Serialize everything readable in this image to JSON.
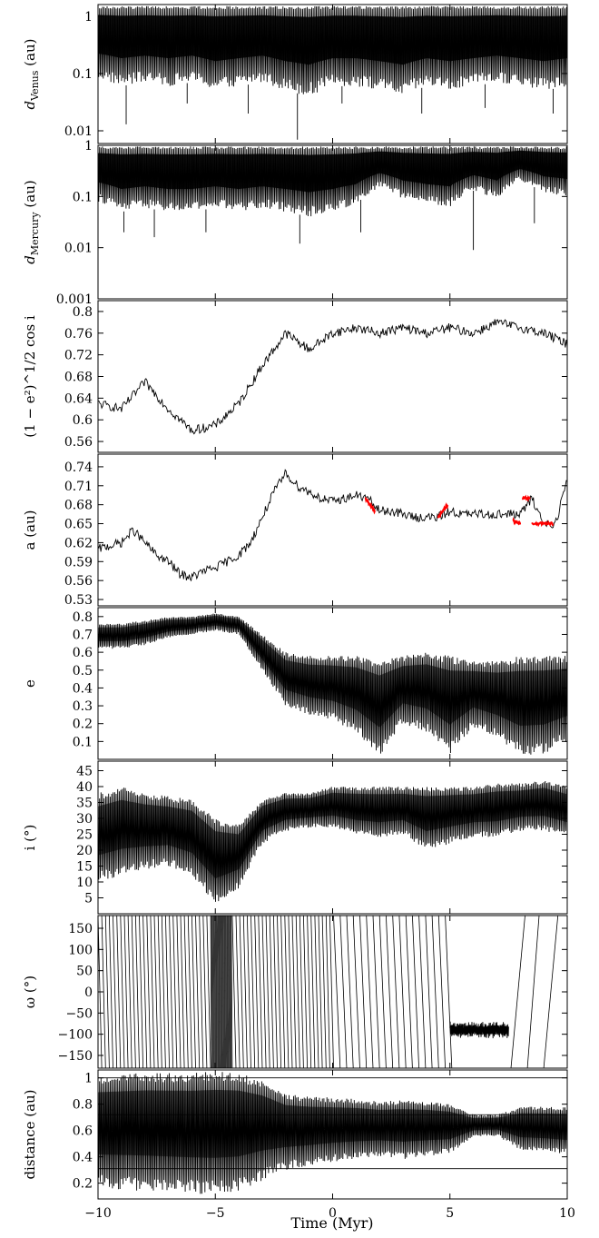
{
  "figure": {
    "xlabel": "Time (Myr)",
    "x_tick_labels": [
      "−10",
      "−5",
      "0",
      "5",
      "10"
    ]
  },
  "chart_data": [
    {
      "type": "line",
      "id": "dvenus",
      "ylabel": "d_Venus (au)",
      "ylabel_main": "d",
      "ylabel_sub": "Venus",
      "ylabel_tail": " (au)",
      "yscale": "log",
      "xlim": [
        -10,
        10
      ],
      "ylim": [
        0.006,
        1.6
      ],
      "y_ticks": [
        0.01,
        0.1,
        1
      ],
      "y_tick_labels": [
        "0.01",
        "0.1",
        "1"
      ],
      "series": [
        {
          "x": [
            -10,
            -9,
            -8,
            -7,
            -6,
            -5,
            -4,
            -3,
            -2,
            -1,
            0,
            1,
            2,
            3,
            4,
            5,
            6,
            7,
            8,
            9,
            10
          ],
          "y_max": [
            1.5,
            1.5,
            1.5,
            1.5,
            1.5,
            1.5,
            1.5,
            1.5,
            1.5,
            1.5,
            1.5,
            1.5,
            1.5,
            1.5,
            1.5,
            1.5,
            1.5,
            1.5,
            1.5,
            1.5,
            1.5
          ],
          "y_min": [
            0.08,
            0.06,
            0.07,
            0.06,
            0.07,
            0.05,
            0.06,
            0.07,
            0.05,
            0.04,
            0.06,
            0.06,
            0.05,
            0.04,
            0.06,
            0.05,
            0.06,
            0.07,
            0.06,
            0.05,
            0.06
          ],
          "spikes": [
            [
              -8.8,
              0.013
            ],
            [
              -6.2,
              0.03
            ],
            [
              -3.6,
              0.02
            ],
            [
              -1.5,
              0.007
            ],
            [
              0.4,
              0.03
            ],
            [
              3.8,
              0.02
            ],
            [
              6.5,
              0.025
            ],
            [
              9.4,
              0.02
            ]
          ]
        }
      ]
    },
    {
      "type": "line",
      "id": "dmercury",
      "ylabel": "d_Mercury (au)",
      "ylabel_main": "d",
      "ylabel_sub": "Mercury",
      "ylabel_tail": " (au)",
      "yscale": "log",
      "xlim": [
        -10,
        10
      ],
      "ylim": [
        0.001,
        1
      ],
      "y_ticks": [
        0.001,
        0.01,
        0.1,
        1
      ],
      "y_tick_labels": [
        "0.001",
        "0.01",
        "0.1",
        "1"
      ],
      "series": [
        {
          "x": [
            -10,
            -9,
            -8,
            -7,
            -6,
            -5,
            -4,
            -3,
            -2,
            -1,
            0,
            1,
            2,
            3,
            4,
            5,
            6,
            7,
            8,
            9,
            10
          ],
          "y_max": [
            0.95,
            0.95,
            0.95,
            0.95,
            0.95,
            0.95,
            0.95,
            0.95,
            0.95,
            0.95,
            0.95,
            0.95,
            0.95,
            0.95,
            0.95,
            0.95,
            0.95,
            0.95,
            0.95,
            0.95,
            0.95
          ],
          "y_min": [
            0.08,
            0.05,
            0.06,
            0.05,
            0.05,
            0.06,
            0.05,
            0.06,
            0.05,
            0.04,
            0.05,
            0.07,
            0.15,
            0.09,
            0.07,
            0.06,
            0.13,
            0.09,
            0.2,
            0.12,
            0.1
          ],
          "spikes": [
            [
              -8.9,
              0.02
            ],
            [
              -7.6,
              0.016
            ],
            [
              -5.4,
              0.02
            ],
            [
              -1.4,
              0.012
            ],
            [
              1.2,
              0.02
            ],
            [
              6.0,
              0.009
            ],
            [
              8.6,
              0.03
            ]
          ]
        }
      ]
    },
    {
      "type": "line",
      "id": "tisserand",
      "ylabel": "(1 − e²)^1/2 cos i",
      "yscale": "linear",
      "xlim": [
        -10,
        10
      ],
      "ylim": [
        0.54,
        0.82
      ],
      "y_ticks": [
        0.56,
        0.6,
        0.64,
        0.68,
        0.72,
        0.76,
        0.8
      ],
      "y_tick_labels": [
        "0.56",
        "0.6",
        "0.64",
        "0.68",
        "0.72",
        "0.76",
        "0.8"
      ],
      "series": [
        {
          "x": [
            -10,
            -9,
            -8,
            -7,
            -6,
            -5,
            -4,
            -3,
            -2,
            -1,
            0,
            1,
            2,
            3,
            4,
            5,
            6,
            7,
            8,
            9,
            10
          ],
          "y": [
            0.63,
            0.62,
            0.67,
            0.62,
            0.58,
            0.59,
            0.63,
            0.7,
            0.76,
            0.73,
            0.76,
            0.77,
            0.76,
            0.77,
            0.76,
            0.77,
            0.76,
            0.78,
            0.77,
            0.76,
            0.74
          ]
        }
      ]
    },
    {
      "type": "line",
      "id": "semimajor",
      "ylabel": "a (au)",
      "yscale": "linear",
      "xlim": [
        -10,
        10
      ],
      "ylim": [
        0.52,
        0.76
      ],
      "y_ticks": [
        0.53,
        0.56,
        0.59,
        0.62,
        0.65,
        0.68,
        0.71,
        0.74
      ],
      "y_tick_labels": [
        "0.53",
        "0.56",
        "0.59",
        "0.62",
        "0.65",
        "0.68",
        "0.71",
        "0.74"
      ],
      "series": [
        {
          "color": "#000000",
          "x": [
            -10,
            -9.5,
            -9,
            -8.5,
            -8,
            -7.5,
            -7,
            -6.5,
            -6,
            -5.5,
            -5,
            -4.5,
            -4,
            -3.5,
            -3,
            -2.5,
            -2,
            -1.5,
            -1,
            -0.5,
            0,
            0.5,
            1,
            1.5,
            2,
            2.5,
            3,
            3.5,
            4,
            4.5,
            5,
            5.5,
            6,
            6.5,
            7,
            7.5,
            8,
            8.5,
            9,
            9.5,
            10
          ],
          "y": [
            0.61,
            0.615,
            0.62,
            0.64,
            0.62,
            0.6,
            0.59,
            0.57,
            0.565,
            0.575,
            0.58,
            0.59,
            0.6,
            0.62,
            0.66,
            0.7,
            0.73,
            0.71,
            0.7,
            0.69,
            0.685,
            0.69,
            0.695,
            0.69,
            0.67,
            0.67,
            0.665,
            0.66,
            0.66,
            0.66,
            0.67,
            0.665,
            0.665,
            0.665,
            0.665,
            0.665,
            0.665,
            0.69,
            0.65,
            0.65,
            0.72
          ]
        },
        {
          "color": "#ff0000",
          "segments": [
            [
              [
                1.4,
                0.69
              ],
              [
                1.8,
                0.67
              ]
            ],
            [
              [
                4.5,
                0.66
              ],
              [
                4.9,
                0.68
              ]
            ],
            [
              [
                7.7,
                0.655
              ],
              [
                8.0,
                0.65
              ]
            ],
            [
              [
                8.1,
                0.69
              ],
              [
                8.4,
                0.69
              ]
            ],
            [
              [
                8.5,
                0.65
              ],
              [
                9.4,
                0.65
              ]
            ]
          ]
        }
      ]
    },
    {
      "type": "line",
      "id": "eccentricity",
      "ylabel": "e",
      "yscale": "linear",
      "xlim": [
        -10,
        10
      ],
      "ylim": [
        0,
        0.85
      ],
      "y_ticks": [
        0.1,
        0.2,
        0.3,
        0.4,
        0.5,
        0.6,
        0.7,
        0.8
      ],
      "y_tick_labels": [
        "0.1",
        "0.2",
        "0.3",
        "0.4",
        "0.5",
        "0.6",
        "0.7",
        "0.8"
      ],
      "series": [
        {
          "x": [
            -10,
            -9,
            -8,
            -7,
            -6,
            -5,
            -4,
            -3,
            -2,
            -1,
            0,
            1,
            2,
            3,
            4,
            5,
            6,
            7,
            8,
            9,
            10
          ],
          "y_max": [
            0.76,
            0.76,
            0.78,
            0.8,
            0.8,
            0.82,
            0.8,
            0.7,
            0.6,
            0.58,
            0.58,
            0.58,
            0.55,
            0.58,
            0.6,
            0.58,
            0.55,
            0.55,
            0.58,
            0.58,
            0.58
          ],
          "y_min": [
            0.62,
            0.62,
            0.64,
            0.68,
            0.7,
            0.72,
            0.7,
            0.5,
            0.3,
            0.25,
            0.22,
            0.15,
            0.02,
            0.2,
            0.15,
            0.03,
            0.18,
            0.12,
            0.02,
            0.03,
            0.1
          ]
        }
      ]
    },
    {
      "type": "line",
      "id": "inclination",
      "ylabel": "i (°)",
      "yscale": "linear",
      "xlim": [
        -10,
        10
      ],
      "ylim": [
        0,
        48
      ],
      "y_ticks": [
        5,
        10,
        15,
        20,
        25,
        30,
        35,
        40,
        45
      ],
      "y_tick_labels": [
        "5",
        "10",
        "15",
        "20",
        "25",
        "30",
        "35",
        "40",
        "45"
      ],
      "series": [
        {
          "x": [
            -10,
            -9,
            -8,
            -7,
            -6,
            -5,
            -4,
            -3,
            -2,
            -1,
            0,
            1,
            2,
            3,
            4,
            5,
            6,
            7,
            8,
            9,
            10
          ],
          "y_max": [
            38,
            40,
            38,
            37,
            36,
            30,
            28,
            36,
            38,
            38,
            40,
            40,
            40,
            40,
            40,
            40,
            40,
            41,
            41,
            42,
            40
          ],
          "y_min": [
            10,
            12,
            14,
            15,
            12,
            3,
            8,
            22,
            26,
            27,
            27,
            25,
            24,
            25,
            20,
            22,
            24,
            24,
            26,
            26,
            24
          ]
        }
      ]
    },
    {
      "type": "line",
      "id": "argperi",
      "ylabel": "ω (°)",
      "yscale": "linear",
      "xlim": [
        -10,
        10
      ],
      "ylim": [
        -180,
        180
      ],
      "y_ticks": [
        -150,
        -100,
        -50,
        0,
        50,
        100,
        150
      ],
      "y_tick_labels": [
        "−150",
        "−100",
        "−50",
        "0",
        "50",
        "100",
        "150"
      ],
      "series": [
        {
          "note": "circulating sawtooth from -10 to 5 Myr, libration near -90 from 5 to 7.5 Myr",
          "libration_center": -90,
          "libration_interval": [
            5,
            7.5
          ]
        }
      ]
    },
    {
      "type": "line",
      "id": "distance",
      "ylabel": "distance (au)",
      "yscale": "linear",
      "xlim": [
        -10,
        10
      ],
      "ylim": [
        0.08,
        1.06
      ],
      "y_ticks": [
        0.2,
        0.4,
        0.6,
        0.8,
        1
      ],
      "y_tick_labels": [
        "0.2",
        "0.4",
        "0.6",
        "0.8",
        "1"
      ],
      "reference_lines": [
        0.31,
        0.72,
        1.0
      ],
      "series": [
        {
          "x": [
            -10,
            -9,
            -8,
            -7,
            -6,
            -5,
            -4,
            -3,
            -2,
            -1,
            0,
            1,
            2,
            3,
            4,
            5,
            6,
            7,
            8,
            9,
            10
          ],
          "y_max": [
            1.02,
            1.03,
            1.04,
            1.04,
            1.04,
            1.05,
            1.04,
            0.98,
            0.88,
            0.86,
            0.85,
            0.84,
            0.82,
            0.83,
            0.82,
            0.8,
            0.72,
            0.72,
            0.78,
            0.78,
            0.78
          ],
          "y_min": [
            0.16,
            0.15,
            0.14,
            0.13,
            0.12,
            0.11,
            0.13,
            0.22,
            0.3,
            0.33,
            0.36,
            0.38,
            0.4,
            0.38,
            0.4,
            0.42,
            0.55,
            0.56,
            0.45,
            0.44,
            0.42
          ]
        }
      ]
    }
  ]
}
